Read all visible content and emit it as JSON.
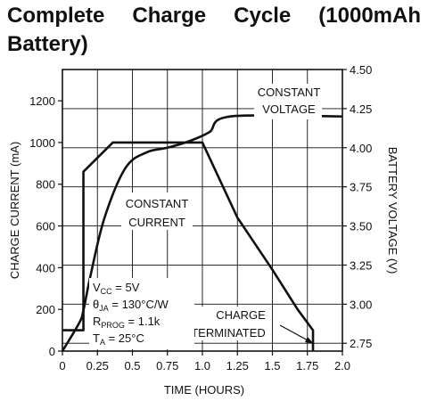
{
  "title": "Complete Charge Cycle (1000mAh Battery)",
  "chart_data": {
    "type": "line",
    "title": "Complete Charge Cycle (1000mAh Battery)",
    "xlabel": "TIME (HOURS)",
    "ylabel_left": "CHARGE CURRENT (mA)",
    "ylabel_right": "BATTERY VOLTAGE (V)",
    "xlim": [
      0,
      2.0
    ],
    "ylim_left": [
      0,
      1350
    ],
    "ylim_right": [
      2.7,
      4.5
    ],
    "x_ticks": [
      "0",
      "0.25",
      "0.5",
      "0.75",
      "1.0",
      "1.25",
      "1.5",
      "1.75",
      "2.0"
    ],
    "y_left_ticks": [
      "0",
      "200",
      "400",
      "600",
      "800",
      "1000",
      "1200"
    ],
    "y_right_ticks": [
      "2.75",
      "3.00",
      "3.25",
      "3.50",
      "3.75",
      "4.00",
      "4.25",
      "4.50"
    ],
    "grid": true,
    "series": [
      {
        "axis": "left",
        "points": [
          [
            0,
            100
          ],
          [
            0.15,
            100
          ],
          [
            0.15,
            860
          ],
          [
            0.36,
            1000
          ],
          [
            1.0,
            1000
          ],
          [
            1.25,
            640
          ],
          [
            1.5,
            390
          ],
          [
            1.68,
            200
          ],
          [
            1.79,
            100
          ],
          [
            1.79,
            0
          ]
        ]
      },
      {
        "axis": "right",
        "points": [
          [
            0,
            2.7
          ],
          [
            0.12,
            2.88
          ],
          [
            0.15,
            2.96
          ],
          [
            0.2,
            3.18
          ],
          [
            0.3,
            3.55
          ],
          [
            0.45,
            3.87
          ],
          [
            0.6,
            3.97
          ],
          [
            0.75,
            4.0
          ],
          [
            0.9,
            4.04
          ],
          [
            1.05,
            4.1
          ],
          [
            1.2,
            4.2
          ],
          [
            2.0,
            4.2
          ]
        ]
      }
    ],
    "annotations": {
      "constant_voltage": [
        "CONSTANT",
        "VOLTAGE"
      ],
      "constant_current": [
        "CONSTANT",
        "CURRENT"
      ],
      "charge_terminated": [
        "CHARGE",
        "TERMINATED"
      ],
      "conditions": {
        "vcc": [
          "V",
          "CC",
          " = 5V"
        ],
        "theta": [
          "θ",
          "JA",
          " = 130°C/W"
        ],
        "rprog": [
          "R",
          "PROG",
          " = 1.1k"
        ],
        "ta": [
          "T",
          "A",
          " = 25°C"
        ]
      }
    }
  }
}
